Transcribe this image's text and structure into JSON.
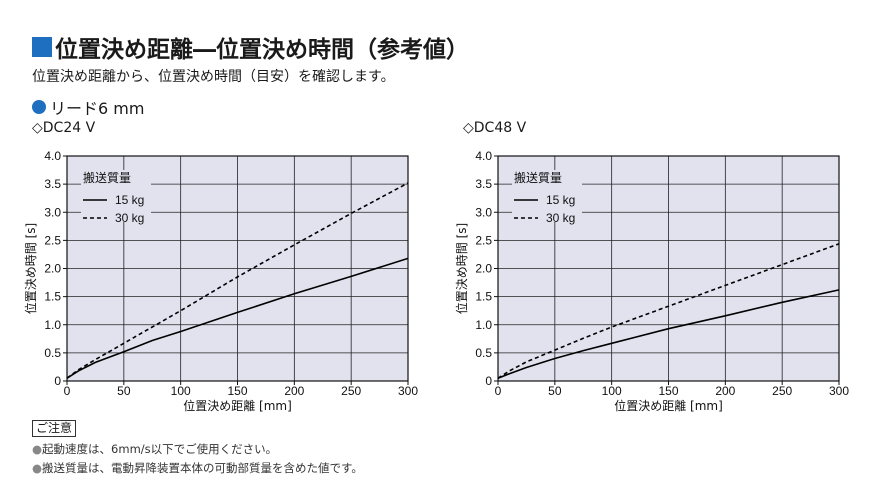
{
  "title": "位置決め距離―位置決め時間（参考値）",
  "subtitle": "位置決め距離から、位置決め時間（目安）を確認します。",
  "lead_label": "リード6 mm",
  "notes": {
    "title": "ご注意",
    "items": [
      "起動速度は、6mm/s以下でご使用ください。",
      "搬送質量は、電動昇降装置本体の可動部質量を含めた値です。"
    ]
  },
  "colors": {
    "accent": "#1f6fc1",
    "plot_bg": "#e2e2ef",
    "line": "#000000"
  },
  "chart_data": [
    {
      "type": "line",
      "title": "◇DC24 V",
      "xlabel": "位置決め距離 [mm]",
      "ylabel": "位置決め時間 [s]",
      "xlim": [
        0,
        300
      ],
      "ylim": [
        0,
        4.0
      ],
      "x_ticks": [
        0,
        50,
        100,
        150,
        200,
        250,
        300
      ],
      "y_ticks": [
        0,
        0.5,
        1.0,
        1.5,
        2.0,
        2.5,
        3.0,
        3.5,
        4.0
      ],
      "x_tick_labels": [
        "0",
        "50",
        "100",
        "150",
        "200",
        "250",
        "300"
      ],
      "y_tick_labels": [
        "0",
        "0.5",
        "1.0",
        "1.5",
        "2.0",
        "2.5",
        "3.0",
        "3.5",
        "4.0"
      ],
      "grid": true,
      "legend_title": "搬送質量",
      "legend_position": "top-left",
      "series": [
        {
          "name": "15 kg",
          "style": "solid",
          "x": [
            0,
            10,
            25,
            50,
            75,
            100,
            150,
            200,
            250,
            300
          ],
          "y": [
            0.05,
            0.18,
            0.33,
            0.52,
            0.72,
            0.88,
            1.22,
            1.55,
            1.86,
            2.18
          ]
        },
        {
          "name": "30 kg",
          "style": "dashed",
          "x": [
            0,
            10,
            25,
            50,
            100,
            150,
            200,
            250,
            300
          ],
          "y": [
            0.05,
            0.2,
            0.38,
            0.67,
            1.25,
            1.85,
            2.42,
            2.98,
            3.52
          ]
        }
      ]
    },
    {
      "type": "line",
      "title": "◇DC48 V",
      "xlabel": "位置決め距離 [mm]",
      "ylabel": "位置決め時間 [s]",
      "xlim": [
        0,
        300
      ],
      "ylim": [
        0,
        4.0
      ],
      "x_ticks": [
        0,
        50,
        100,
        150,
        200,
        250,
        300
      ],
      "y_ticks": [
        0,
        0.5,
        1.0,
        1.5,
        2.0,
        2.5,
        3.0,
        3.5,
        4.0
      ],
      "x_tick_labels": [
        "0",
        "50",
        "100",
        "150",
        "200",
        "250",
        "300"
      ],
      "y_tick_labels": [
        "0",
        "0.5",
        "1.0",
        "1.5",
        "2.0",
        "2.5",
        "3.0",
        "3.5",
        "4.0"
      ],
      "grid": true,
      "legend_title": "搬送質量",
      "legend_position": "top-left",
      "series": [
        {
          "name": "15 kg",
          "style": "solid",
          "x": [
            0,
            10,
            25,
            50,
            75,
            100,
            150,
            200,
            250,
            300
          ],
          "y": [
            0.05,
            0.13,
            0.24,
            0.4,
            0.54,
            0.67,
            0.93,
            1.16,
            1.4,
            1.62
          ]
        },
        {
          "name": "30 kg",
          "style": "dashed",
          "x": [
            0,
            10,
            25,
            50,
            75,
            100,
            150,
            200,
            250,
            300
          ],
          "y": [
            0.05,
            0.18,
            0.34,
            0.55,
            0.76,
            0.96,
            1.33,
            1.7,
            2.07,
            2.44
          ]
        }
      ]
    }
  ]
}
